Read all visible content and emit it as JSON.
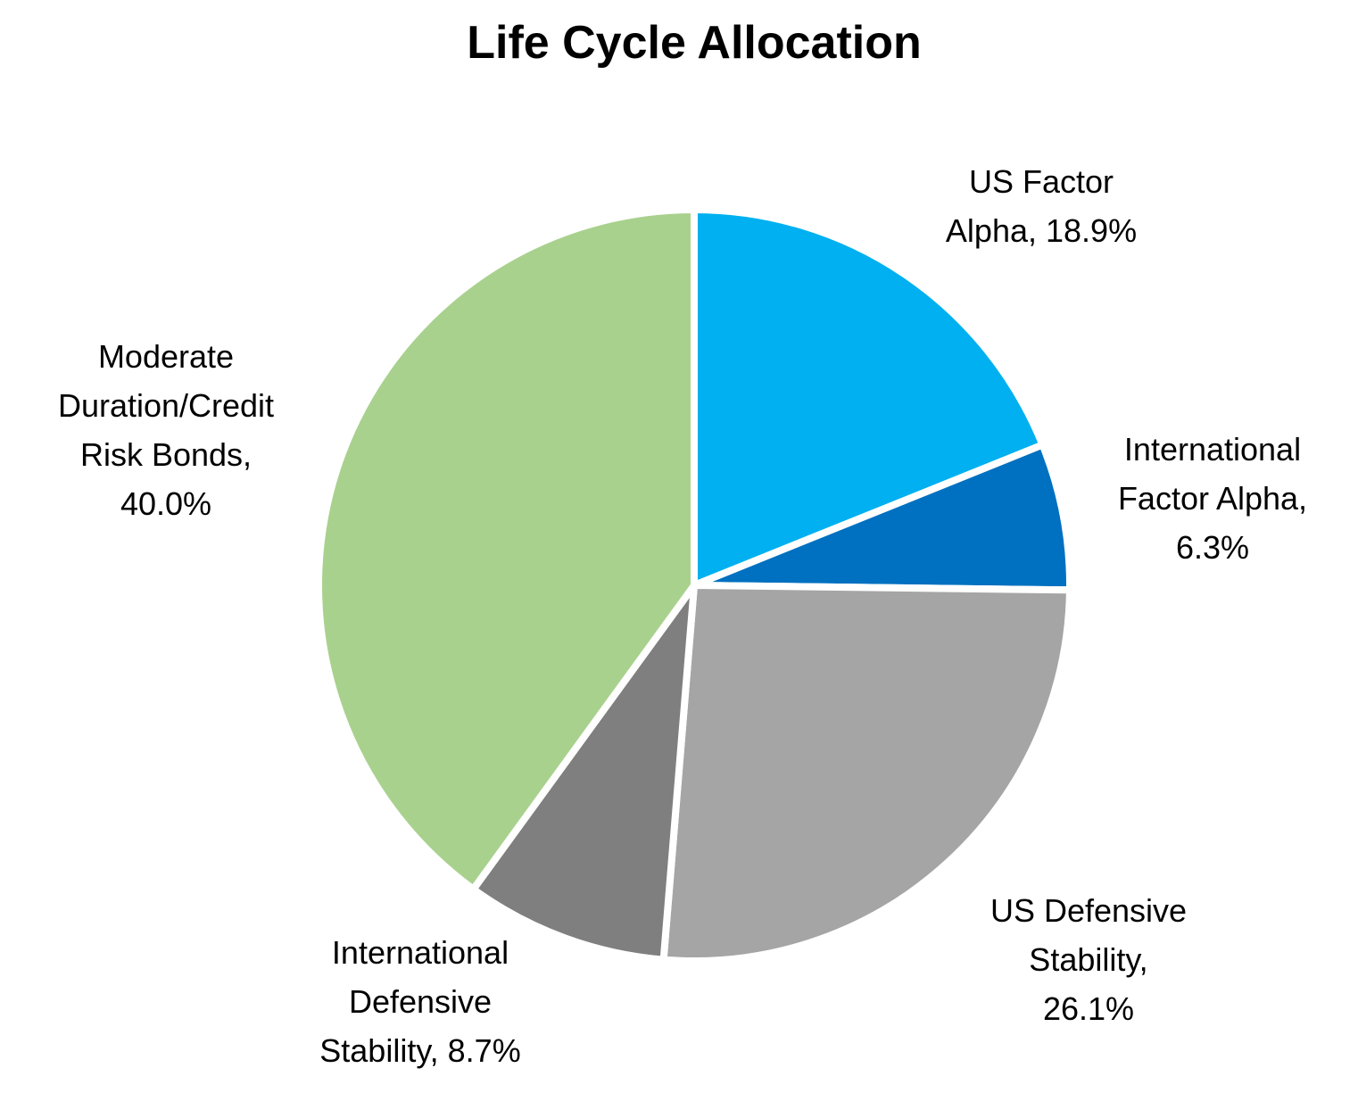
{
  "chart_data": {
    "type": "pie",
    "title": "Life Cycle Allocation",
    "start_angle": "12 o'clock",
    "direction": "clockwise",
    "slices": [
      {
        "name": "US Factor Alpha",
        "value": 18.9,
        "label_lines": [
          "US Factor",
          "Alpha, 18.9%"
        ],
        "color": "#00B0F0"
      },
      {
        "name": "International Factor Alpha",
        "value": 6.3,
        "label_lines": [
          "International",
          "Factor Alpha,",
          "6.3%"
        ],
        "color": "#0070C0"
      },
      {
        "name": "US Defensive Stability",
        "value": 26.1,
        "label_lines": [
          "US Defensive",
          "Stability,",
          "26.1%"
        ],
        "color": "#A5A5A5"
      },
      {
        "name": "International Defensive Stability",
        "value": 8.7,
        "label_lines": [
          "International",
          "Defensive",
          "Stability, 8.7%"
        ],
        "color": "#7F7F7F"
      },
      {
        "name": "Moderate Duration/Credit Risk Bonds",
        "value": 40.0,
        "label_lines": [
          "Moderate",
          "Duration/Credit",
          "Risk Bonds,",
          "40.0%"
        ],
        "color": "#A9D18E"
      }
    ]
  }
}
